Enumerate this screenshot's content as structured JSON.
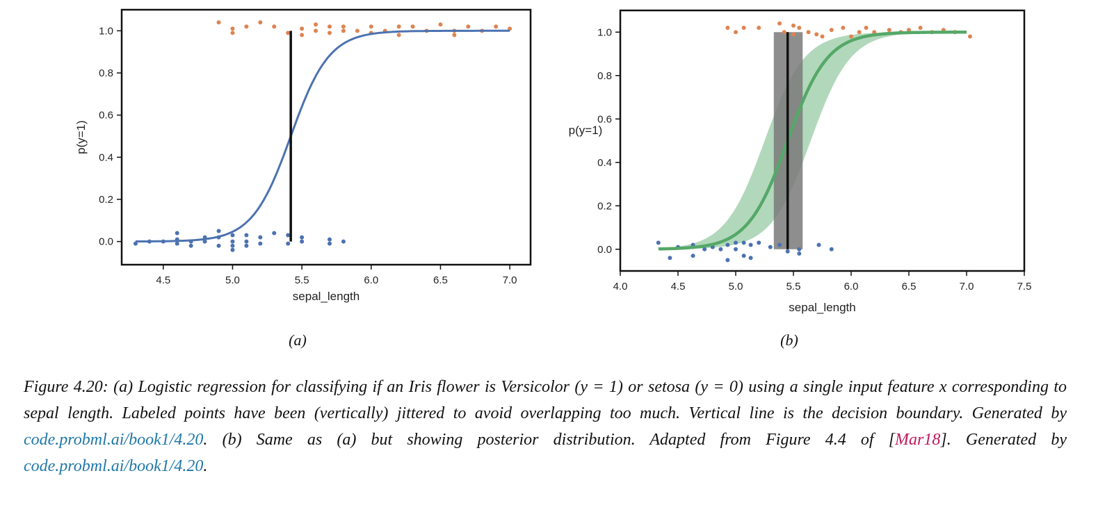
{
  "chart_data": [
    {
      "type": "scatter",
      "panel_label": "(a)",
      "xlabel": "sepal_length",
      "ylabel": "p(y=1)",
      "xlim": [
        4.2,
        7.15
      ],
      "ylim": [
        -0.11,
        1.1
      ],
      "xticks": [
        "4.5",
        "5.0",
        "5.5",
        "6.0",
        "6.5",
        "7.0"
      ],
      "yticks": [
        "0.0",
        "0.2",
        "0.4",
        "0.6",
        "0.8",
        "1.0"
      ],
      "curve": {
        "type": "logistic",
        "midpoint": 5.42,
        "slope": 7.2,
        "x_range": [
          4.3,
          7.0
        ],
        "color": "#4c72b0"
      },
      "decision_boundary": {
        "x": 5.42,
        "y_range": [
          0.0,
          1.0
        ],
        "color": "#111111"
      },
      "series": [
        {
          "label": "y=0",
          "color": "#4c72b0",
          "points": [
            [
              4.3,
              -0.01
            ],
            [
              4.4,
              0.0
            ],
            [
              4.5,
              0.0
            ],
            [
              4.6,
              0.04
            ],
            [
              4.6,
              0.01
            ],
            [
              4.6,
              -0.01
            ],
            [
              4.7,
              0.0
            ],
            [
              4.7,
              -0.02
            ],
            [
              4.8,
              0.02
            ],
            [
              4.8,
              0.0
            ],
            [
              4.9,
              0.05
            ],
            [
              4.9,
              0.02
            ],
            [
              4.9,
              -0.02
            ],
            [
              5.0,
              0.03
            ],
            [
              5.0,
              0.0
            ],
            [
              5.0,
              -0.02
            ],
            [
              5.0,
              -0.04
            ],
            [
              5.1,
              0.03
            ],
            [
              5.1,
              0.0
            ],
            [
              5.1,
              -0.02
            ],
            [
              5.2,
              0.02
            ],
            [
              5.2,
              -0.01
            ],
            [
              5.3,
              0.04
            ],
            [
              5.4,
              0.03
            ],
            [
              5.4,
              -0.01
            ],
            [
              5.5,
              0.02
            ],
            [
              5.5,
              0.0
            ],
            [
              5.7,
              0.01
            ],
            [
              5.7,
              -0.01
            ],
            [
              5.8,
              0.0
            ]
          ]
        },
        {
          "label": "y=1",
          "color": "#dd8452",
          "points": [
            [
              4.9,
              1.04
            ],
            [
              5.0,
              1.01
            ],
            [
              5.0,
              0.99
            ],
            [
              5.1,
              1.02
            ],
            [
              5.2,
              1.04
            ],
            [
              5.3,
              1.02
            ],
            [
              5.4,
              0.99
            ],
            [
              5.5,
              1.01
            ],
            [
              5.5,
              0.98
            ],
            [
              5.6,
              1.03
            ],
            [
              5.6,
              1.0
            ],
            [
              5.7,
              1.02
            ],
            [
              5.7,
              0.99
            ],
            [
              5.8,
              1.02
            ],
            [
              5.8,
              1.0
            ],
            [
              5.9,
              1.0
            ],
            [
              6.0,
              1.02
            ],
            [
              6.0,
              0.99
            ],
            [
              6.1,
              1.0
            ],
            [
              6.2,
              1.02
            ],
            [
              6.2,
              0.98
            ],
            [
              6.3,
              1.02
            ],
            [
              6.4,
              1.0
            ],
            [
              6.5,
              1.03
            ],
            [
              6.6,
              1.0
            ],
            [
              6.6,
              0.98
            ],
            [
              6.7,
              1.02
            ],
            [
              6.8,
              1.0
            ],
            [
              6.9,
              1.02
            ],
            [
              7.0,
              1.01
            ]
          ]
        }
      ]
    },
    {
      "type": "scatter",
      "panel_label": "(b)",
      "xlabel": "sepal_length",
      "ylabel": "p(y=1)",
      "xlim": [
        4.0,
        7.5
      ],
      "ylim": [
        -0.1,
        1.1
      ],
      "xticks": [
        "4.0",
        "4.5",
        "5.0",
        "5.5",
        "6.0",
        "6.5",
        "7.0",
        "7.5"
      ],
      "yticks": [
        "0.0",
        "0.2",
        "0.4",
        "0.6",
        "0.8",
        "1.0"
      ],
      "curve": {
        "type": "logistic",
        "midpoint": 5.45,
        "slope": 5.8,
        "x_range": [
          4.33,
          7.0
        ],
        "color": "#55a868"
      },
      "band": {
        "type": "logistic_band",
        "midpoint_low": 5.25,
        "midpoint_high": 5.65,
        "slope": 5.8,
        "color": "#55a868"
      },
      "boundary_band": {
        "x_range": [
          5.33,
          5.58
        ],
        "y_range": [
          0.0,
          1.0
        ],
        "color": "#7a7a7a"
      },
      "decision_boundary": {
        "x": 5.45,
        "y_range": [
          0.0,
          1.0
        ],
        "color": "#111111"
      },
      "series": [
        {
          "label": "y=0",
          "color": "#4c72b0",
          "points": [
            [
              4.33,
              0.03
            ],
            [
              4.43,
              -0.04
            ],
            [
              4.5,
              0.01
            ],
            [
              4.63,
              0.02
            ],
            [
              4.63,
              -0.03
            ],
            [
              4.73,
              0.0
            ],
            [
              4.8,
              0.01
            ],
            [
              4.87,
              0.0
            ],
            [
              4.93,
              0.02
            ],
            [
              4.93,
              -0.05
            ],
            [
              5.0,
              0.03
            ],
            [
              5.0,
              0.0
            ],
            [
              5.07,
              0.03
            ],
            [
              5.07,
              -0.03
            ],
            [
              5.13,
              0.02
            ],
            [
              5.13,
              -0.04
            ],
            [
              5.2,
              0.03
            ],
            [
              5.3,
              0.01
            ],
            [
              5.38,
              0.02
            ],
            [
              5.45,
              -0.01
            ],
            [
              5.55,
              0.0
            ],
            [
              5.55,
              -0.02
            ],
            [
              5.72,
              0.02
            ],
            [
              5.83,
              0.0
            ]
          ]
        },
        {
          "label": "y=1",
          "color": "#dd8452",
          "points": [
            [
              4.93,
              1.02
            ],
            [
              5.0,
              1.0
            ],
            [
              5.07,
              1.02
            ],
            [
              5.2,
              1.02
            ],
            [
              5.38,
              1.04
            ],
            [
              5.42,
              1.0
            ],
            [
              5.5,
              1.03
            ],
            [
              5.5,
              0.99
            ],
            [
              5.55,
              1.02
            ],
            [
              5.63,
              1.0
            ],
            [
              5.7,
              0.99
            ],
            [
              5.75,
              0.98
            ],
            [
              5.83,
              1.01
            ],
            [
              5.93,
              1.02
            ],
            [
              6.0,
              0.98
            ],
            [
              6.07,
              1.0
            ],
            [
              6.13,
              1.02
            ],
            [
              6.2,
              1.0
            ],
            [
              6.33,
              1.01
            ],
            [
              6.43,
              1.0
            ],
            [
              6.5,
              1.01
            ],
            [
              6.6,
              1.02
            ],
            [
              6.7,
              1.0
            ],
            [
              6.8,
              1.01
            ],
            [
              6.9,
              1.0
            ],
            [
              7.03,
              0.98
            ]
          ]
        }
      ]
    }
  ],
  "caption": {
    "intro": "Figure 4.20: (a) Logistic regression for classifying if an Iris flower is Versicolor (y = 1) or setosa (y = 0) using a single input feature x corresponding to sepal length. Labeled points have been (vertically) jittered to avoid overlapping too much. Vertical line is the decision boundary. Generated by ",
    "link1": "code.probml.ai/book1/4.20",
    "middle": ". (b) Same as (a) but showing posterior distribution. Adapted from Figure 4.4 of [",
    "cite": "Mar18",
    "after_cite": "]. Generated by ",
    "link2": "code.probml.ai/book1/4.20",
    "end": "."
  }
}
